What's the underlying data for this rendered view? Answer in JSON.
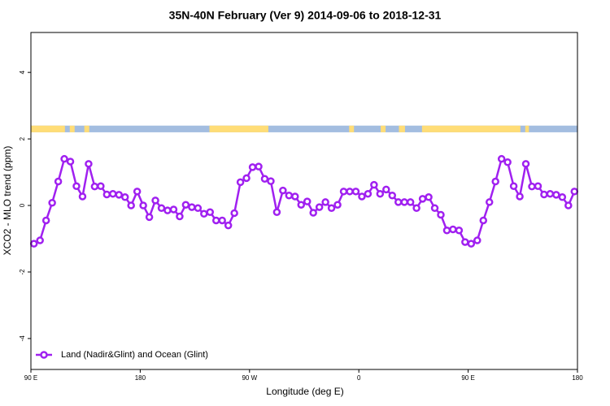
{
  "chart_data": {
    "type": "line",
    "title": "35N-40N February (Ver 9)   2014-09-06 to 2018-12-31",
    "x_label": "Longitude (deg E)",
    "y_label": "XCO2 - MLO trend (ppm)",
    "xlim": [
      90,
      540
    ],
    "ylim": [
      -4.93,
      5.2
    ],
    "xticks": [
      {
        "value": 90,
        "label": "90 E"
      },
      180,
      {
        "value": 270,
        "label": "90 W"
      },
      {
        "value": 360,
        "label": "0"
      },
      {
        "value": 450,
        "label": "90 E"
      },
      {
        "value": 540,
        "label": "180"
      }
    ],
    "yticks": [
      4,
      2,
      0,
      -2,
      -4
    ],
    "strip": {
      "range": [
        2.2,
        2.4
      ],
      "ocean_color": "#a3bde0",
      "land_color": "#ffdd77",
      "land": [
        [
          90,
          118
        ],
        [
          122,
          126
        ],
        [
          134,
          138
        ],
        [
          237,
          285.5
        ],
        [
          352,
          356
        ],
        [
          378,
          382
        ],
        [
          393,
          398
        ],
        [
          412,
          493
        ],
        [
          497,
          500
        ]
      ]
    },
    "legend": "bottom-left",
    "series": [
      {
        "name": "Land (Nadir&Glint) and Ocean (Glint)",
        "color": "#a020f0",
        "x": [
          92.5,
          97.5,
          102.5,
          107.5,
          112.5,
          117.5,
          122.5,
          127.5,
          132.5,
          137.5,
          142.5,
          147.5,
          152.5,
          157.5,
          162.5,
          167.5,
          172.5,
          177.5,
          182.5,
          187.5,
          192.5,
          197.5,
          202.5,
          207.5,
          212.5,
          217.5,
          222.5,
          227.5,
          232.5,
          237.5,
          242.5,
          247.5,
          252.5,
          257.5,
          262.5,
          267.5,
          272.5,
          277.5,
          282.5,
          287.5,
          292.5,
          297.5,
          302.5,
          307.5,
          312.5,
          317.5,
          322.5,
          327.5,
          332.5,
          337.5,
          342.5,
          347.5,
          352.5,
          357.5,
          362.5,
          367.5,
          372.5,
          377.5,
          382.5,
          387.5,
          392.5,
          397.5,
          402.5,
          407.5,
          412.5,
          417.5,
          422.5,
          427.5,
          432.5,
          437.5,
          442.5,
          447.5,
          452.5,
          457.5,
          462.5,
          467.5,
          472.5,
          477.5,
          482.5,
          487.5,
          492.5,
          497.5,
          502.5,
          507.5,
          512.5,
          517.5,
          522.5,
          527.5,
          532.5,
          537.5
        ],
        "values": [
          -1.15,
          -1.05,
          -0.45,
          0.08,
          0.72,
          1.4,
          1.32,
          0.58,
          0.27,
          1.25,
          0.57,
          0.58,
          0.33,
          0.35,
          0.32,
          0.25,
          0.0,
          0.42,
          0.0,
          -0.35,
          0.15,
          -0.08,
          -0.15,
          -0.12,
          -0.33,
          0.02,
          -0.05,
          -0.08,
          -0.25,
          -0.2,
          -0.45,
          -0.45,
          -0.6,
          -0.23,
          0.7,
          0.82,
          1.15,
          1.17,
          0.8,
          0.73,
          -0.2,
          0.45,
          0.3,
          0.27,
          0.02,
          0.12,
          -0.22,
          -0.05,
          0.1,
          -0.08,
          0.02,
          0.42,
          0.42,
          0.42,
          0.27,
          0.35,
          0.62,
          0.35,
          0.48,
          0.3,
          0.1,
          0.1,
          0.1,
          -0.08,
          0.2,
          0.25,
          -0.08,
          -0.28,
          -0.75,
          -0.72,
          -0.75,
          -1.1,
          -1.15,
          -1.05,
          -0.45,
          0.1,
          0.72,
          1.4,
          1.3,
          0.58,
          0.27,
          1.25,
          0.57,
          0.58,
          0.33,
          0.35,
          0.32,
          0.25,
          0.0,
          0.42
        ]
      }
    ]
  }
}
